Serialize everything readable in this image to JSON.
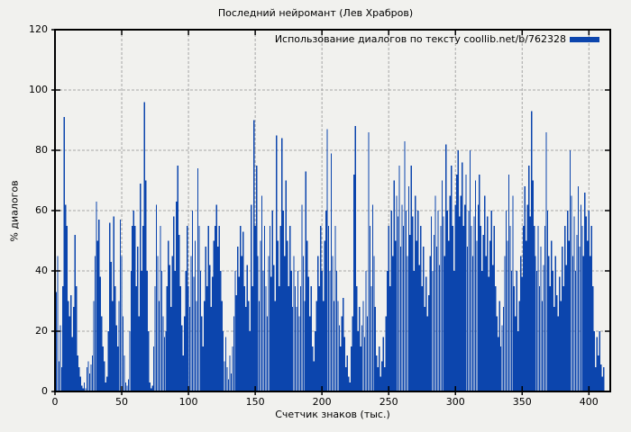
{
  "title": "Последний нейромант (Лев Храбров)",
  "legend": {
    "label": "Использование диалогов по тексту coollib.net/b/762328"
  },
  "axes": {
    "x_label": "Счетчик знаков (тыс.)",
    "y_label": "% диалогов",
    "x_ticks": [
      0,
      50,
      100,
      150,
      200,
      250,
      300,
      350,
      400
    ],
    "y_ticks": [
      0,
      20,
      40,
      60,
      80,
      100,
      120
    ]
  },
  "colors": {
    "background": "#f1f1ee",
    "bar": "#0c45ad",
    "grid": "#a6a6a6",
    "border": "#000000"
  },
  "chart_data": {
    "type": "bar",
    "title": "Последний нейромант (Лев Храбров)",
    "xlabel": "Счетчик знаков (тыс.)",
    "ylabel": "% диалогов",
    "series_name": "Использование диалогов по тексту coollib.net/b/762328",
    "xlim": [
      0,
      416
    ],
    "ylim": [
      0,
      120
    ],
    "grid": true,
    "legend_position": "top-right",
    "x_start": 1,
    "x_step": 1,
    "values": [
      33,
      45,
      10,
      22,
      8,
      35,
      91,
      62,
      55,
      30,
      25,
      32,
      18,
      28,
      52,
      35,
      12,
      8,
      5,
      2,
      1,
      3,
      1,
      8,
      10,
      6,
      9,
      12,
      30,
      45,
      63,
      50,
      57,
      38,
      25,
      15,
      10,
      3,
      5,
      20,
      56,
      43,
      30,
      58,
      35,
      22,
      15,
      30,
      57,
      45,
      25,
      12,
      3,
      2,
      4,
      20,
      40,
      55,
      60,
      55,
      35,
      48,
      25,
      69,
      40,
      55,
      96,
      70,
      40,
      20,
      3,
      1,
      2,
      15,
      35,
      62,
      45,
      30,
      55,
      40,
      25,
      18,
      20,
      35,
      50,
      42,
      28,
      45,
      58,
      40,
      63,
      75,
      52,
      35,
      22,
      12,
      25,
      40,
      55,
      35,
      28,
      45,
      60,
      38,
      50,
      30,
      74,
      55,
      40,
      25,
      15,
      30,
      48,
      35,
      55,
      42,
      28,
      38,
      50,
      55,
      62,
      48,
      55,
      40,
      30,
      20,
      10,
      18,
      8,
      4,
      12,
      6,
      15,
      25,
      40,
      32,
      48,
      38,
      55,
      45,
      53,
      35,
      28,
      42,
      30,
      20,
      62,
      35,
      90,
      55,
      75,
      45,
      30,
      50,
      65,
      40,
      55,
      35,
      25,
      45,
      55,
      38,
      60,
      42,
      30,
      85,
      50,
      35,
      55,
      84,
      60,
      45,
      70,
      50,
      35,
      55,
      40,
      28,
      45,
      35,
      28,
      40,
      25,
      35,
      62,
      45,
      30,
      73,
      50,
      38,
      25,
      35,
      15,
      10,
      20,
      30,
      45,
      35,
      55,
      40,
      30,
      50,
      60,
      87,
      55,
      40,
      79,
      45,
      30,
      55,
      40,
      30,
      22,
      15,
      25,
      31,
      18,
      8,
      12,
      5,
      3,
      15,
      25,
      72,
      88,
      35,
      20,
      28,
      15,
      22,
      30,
      18,
      40,
      25,
      86,
      55,
      35,
      62,
      45,
      28,
      12,
      8,
      15,
      5,
      10,
      18,
      8,
      25,
      40,
      55,
      35,
      60,
      45,
      70,
      50,
      65,
      58,
      75,
      48,
      62,
      55,
      83,
      60,
      45,
      68,
      52,
      75,
      58,
      40,
      65,
      50,
      60,
      42,
      55,
      35,
      48,
      28,
      38,
      25,
      32,
      45,
      58,
      40,
      52,
      65,
      48,
      60,
      42,
      55,
      70,
      58,
      45,
      82,
      60,
      50,
      65,
      75,
      55,
      40,
      62,
      72,
      80,
      58,
      65,
      76,
      55,
      62,
      72,
      48,
      60,
      80,
      55,
      45,
      58,
      70,
      50,
      62,
      72,
      55,
      40,
      52,
      65,
      45,
      58,
      38,
      50,
      60,
      42,
      55,
      35,
      25,
      18,
      30,
      15,
      22,
      28,
      45,
      60,
      50,
      72,
      55,
      40,
      65,
      35,
      25,
      40,
      20,
      30,
      45,
      38,
      55,
      68,
      50,
      62,
      75,
      58,
      93,
      70,
      55,
      45,
      40,
      55,
      35,
      48,
      30,
      42,
      55,
      86,
      60,
      45,
      35,
      50,
      40,
      28,
      45,
      32,
      25,
      38,
      30,
      48,
      35,
      55,
      42,
      60,
      50,
      80,
      65,
      45,
      58,
      40,
      52,
      68,
      48,
      62,
      55,
      45,
      66,
      58,
      50,
      60,
      45,
      55,
      35,
      20,
      8,
      18,
      12,
      20,
      9,
      5,
      8
    ]
  }
}
